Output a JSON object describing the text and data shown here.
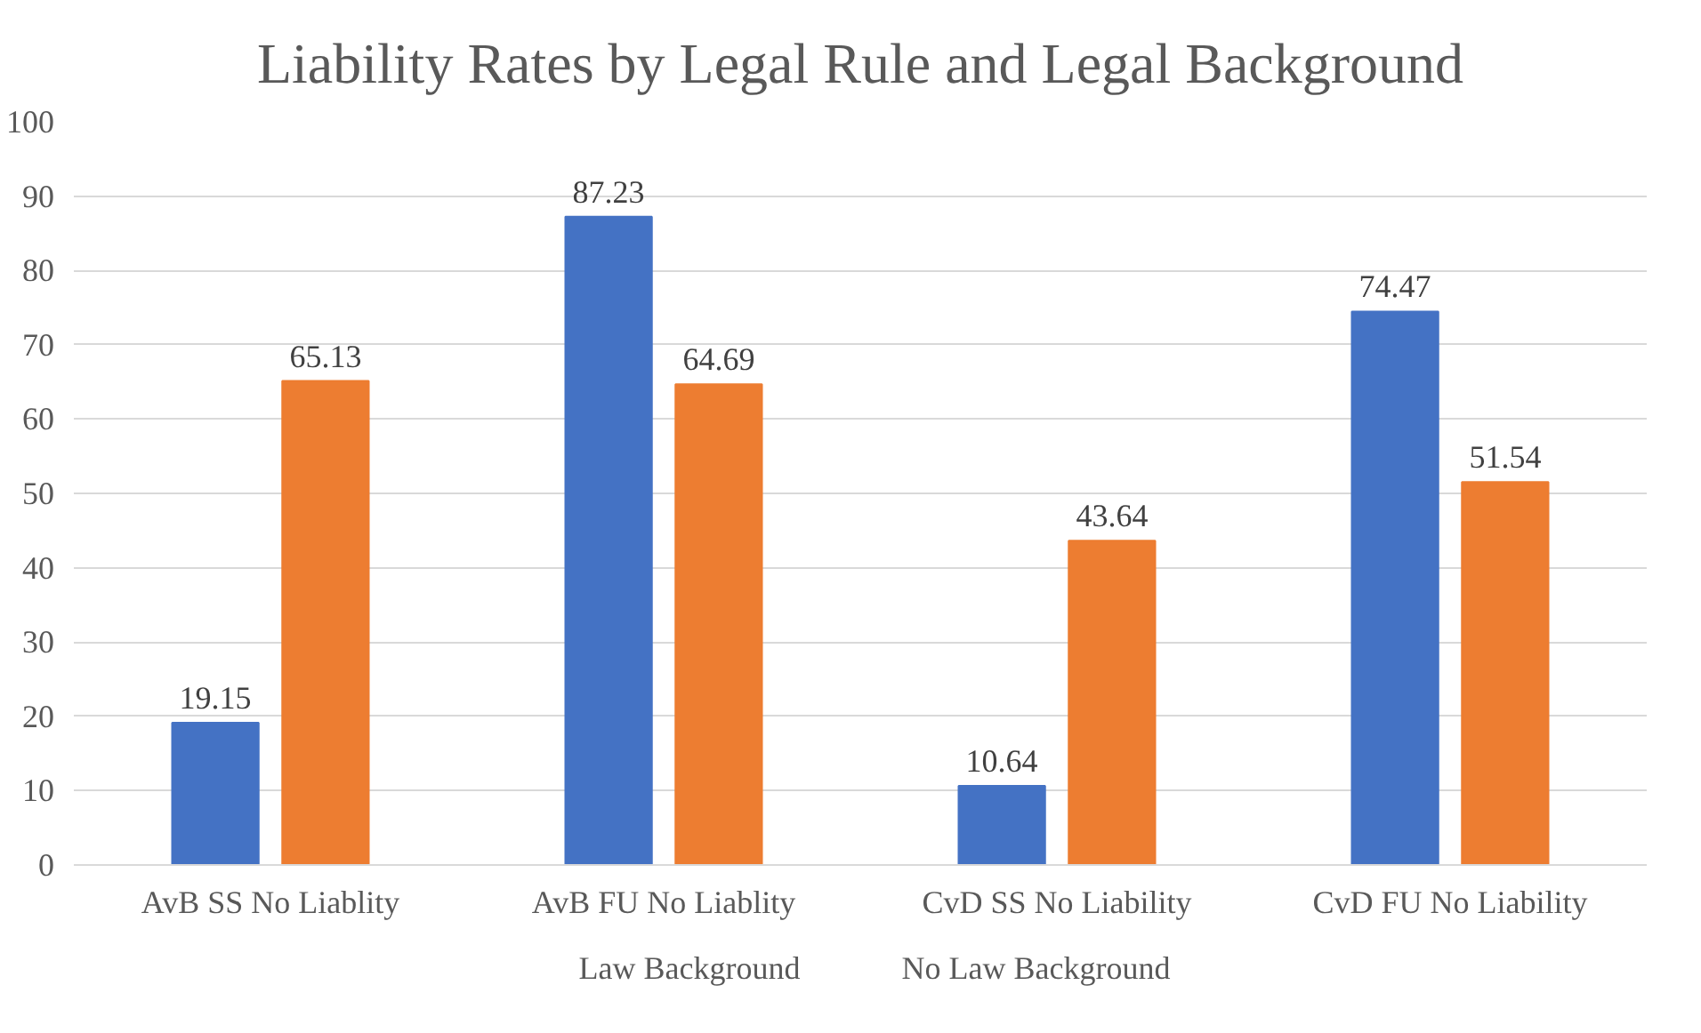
{
  "chart_data": {
    "type": "bar",
    "title": "Liability Rates by Legal Rule and Legal Background",
    "categories": [
      "AvB SS No Liablity",
      "AvB FU No Liablity",
      "CvD SS No Liability",
      "CvD FU No Liability"
    ],
    "series": [
      {
        "name": "Law Background",
        "color": "#4472c4",
        "values": [
          19.15,
          87.23,
          10.64,
          74.47
        ]
      },
      {
        "name": "No Law Background",
        "color": "#ed7d31",
        "values": [
          65.13,
          64.69,
          43.64,
          51.54
        ]
      }
    ],
    "ylim": [
      0,
      100
    ],
    "yticks": [
      0,
      10,
      20,
      30,
      40,
      50,
      60,
      70,
      80,
      90,
      100
    ],
    "grid": "y",
    "legend": "bottom",
    "data_labels": true
  }
}
